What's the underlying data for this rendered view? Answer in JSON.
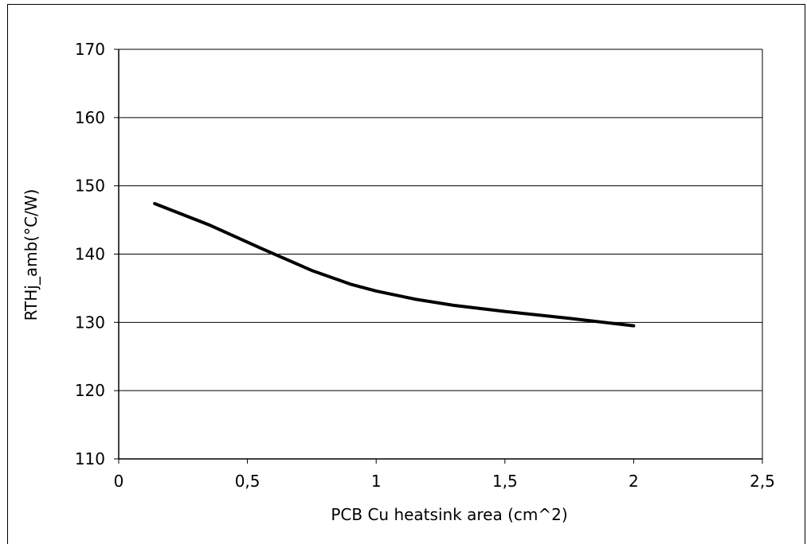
{
  "chart_data": {
    "type": "line",
    "title": "",
    "xlabel": "PCB Cu heatsink area (cm^2)",
    "ylabel": "RTHj_amb(°C/W)",
    "xlim": [
      0,
      2.5
    ],
    "ylim": [
      110,
      170
    ],
    "x_ticks": [
      0,
      0.5,
      1,
      1.5,
      2,
      2.5
    ],
    "x_tick_labels": [
      "0",
      "0,5",
      "1",
      "1,5",
      "2",
      "2,5"
    ],
    "y_ticks": [
      110,
      120,
      130,
      140,
      150,
      160,
      170
    ],
    "y_tick_labels": [
      "110",
      "120",
      "130",
      "140",
      "150",
      "160",
      "170"
    ],
    "grid": "horizontal",
    "series": [
      {
        "color": "#000000",
        "x": [
          0.14,
          0.35,
          0.55,
          0.75,
          0.9,
          1.0,
          1.15,
          1.3,
          1.5,
          1.75,
          2.0
        ],
        "y": [
          147.4,
          144.3,
          140.9,
          137.6,
          135.6,
          134.6,
          133.4,
          132.5,
          131.6,
          130.6,
          129.5
        ]
      }
    ]
  }
}
